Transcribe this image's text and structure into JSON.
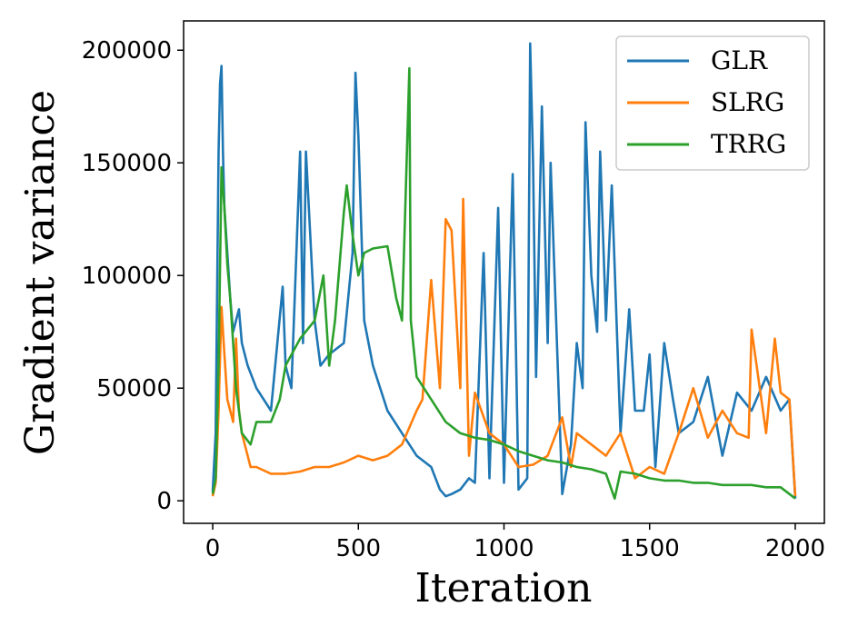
{
  "chart_data": {
    "type": "line",
    "xlabel": "Iteration",
    "ylabel": "Gradient variance",
    "xlim": [
      -100,
      2100
    ],
    "ylim": [
      -10000,
      213000
    ],
    "xticks": [
      0,
      500,
      1000,
      1500,
      2000
    ],
    "yticks": [
      0,
      50000,
      100000,
      150000,
      200000
    ],
    "xtick_labels": [
      "0",
      "500",
      "1000",
      "1500",
      "2000"
    ],
    "ytick_labels": [
      "0",
      "50000",
      "100000",
      "150000",
      "200000"
    ],
    "grid": false,
    "legend_position": "top-right",
    "series": [
      {
        "name": "GLR",
        "color": "#1f77b4",
        "x": [
          0,
          10,
          20,
          25,
          30,
          35,
          40,
          50,
          60,
          70,
          80,
          90,
          100,
          120,
          150,
          200,
          240,
          250,
          270,
          300,
          310,
          320,
          340,
          350,
          370,
          400,
          450,
          480,
          490,
          500,
          520,
          550,
          600,
          650,
          700,
          750,
          780,
          800,
          820,
          850,
          880,
          900,
          930,
          950,
          980,
          1000,
          1030,
          1050,
          1080,
          1090,
          1100,
          1110,
          1130,
          1150,
          1160,
          1200,
          1230,
          1250,
          1270,
          1280,
          1300,
          1320,
          1330,
          1350,
          1370,
          1400,
          1430,
          1450,
          1480,
          1500,
          1520,
          1550,
          1580,
          1600,
          1650,
          1700,
          1750,
          1800,
          1850,
          1900,
          1950,
          1980,
          2000
        ],
        "y": [
          4000,
          30000,
          155000,
          185000,
          193000,
          155000,
          130000,
          110000,
          90000,
          75000,
          80000,
          85000,
          70000,
          60000,
          50000,
          40000,
          95000,
          60000,
          50000,
          155000,
          70000,
          155000,
          105000,
          80000,
          60000,
          65000,
          70000,
          110000,
          190000,
          162000,
          80000,
          60000,
          40000,
          30000,
          20000,
          15000,
          5000,
          2000,
          3000,
          5000,
          10000,
          8000,
          110000,
          10000,
          130000,
          8000,
          145000,
          5000,
          10000,
          203000,
          150000,
          55000,
          175000,
          70000,
          150000,
          3000,
          25000,
          70000,
          50000,
          168000,
          100000,
          75000,
          155000,
          80000,
          140000,
          30000,
          85000,
          40000,
          40000,
          65000,
          15000,
          70000,
          45000,
          30000,
          35000,
          55000,
          20000,
          48000,
          40000,
          55000,
          40000,
          45000,
          1000
        ]
      },
      {
        "name": "SLRG",
        "color": "#ff7f0e",
        "x": [
          0,
          10,
          20,
          30,
          40,
          50,
          60,
          70,
          80,
          90,
          100,
          130,
          150,
          200,
          250,
          300,
          350,
          400,
          450,
          500,
          550,
          600,
          650,
          700,
          720,
          750,
          780,
          800,
          820,
          850,
          860,
          880,
          900,
          950,
          1000,
          1050,
          1100,
          1150,
          1200,
          1230,
          1250,
          1300,
          1350,
          1400,
          1450,
          1500,
          1550,
          1600,
          1650,
          1700,
          1750,
          1800,
          1840,
          1850,
          1900,
          1930,
          1950,
          1980,
          2000
        ],
        "y": [
          2000,
          8000,
          40000,
          86000,
          65000,
          45000,
          40000,
          35000,
          72000,
          40000,
          30000,
          15000,
          15000,
          12000,
          12000,
          13000,
          15000,
          15000,
          17000,
          20000,
          18000,
          20000,
          25000,
          40000,
          45000,
          98000,
          50000,
          125000,
          120000,
          50000,
          134000,
          20000,
          48000,
          30000,
          25000,
          15000,
          16000,
          20000,
          37000,
          15000,
          30000,
          25000,
          20000,
          30000,
          10000,
          15000,
          12000,
          30000,
          50000,
          28000,
          40000,
          30000,
          28000,
          76000,
          30000,
          72000,
          48000,
          45000,
          2000
        ]
      },
      {
        "name": "TRRG",
        "color": "#2ca02c",
        "x": [
          0,
          10,
          20,
          30,
          40,
          50,
          60,
          80,
          100,
          130,
          150,
          200,
          230,
          250,
          300,
          350,
          380,
          400,
          420,
          450,
          460,
          480,
          500,
          520,
          550,
          600,
          630,
          650,
          675,
          680,
          700,
          750,
          800,
          850,
          900,
          950,
          1000,
          1050,
          1100,
          1150,
          1200,
          1250,
          1300,
          1350,
          1380,
          1400,
          1450,
          1500,
          1550,
          1600,
          1650,
          1700,
          1750,
          1800,
          1850,
          1900,
          1950,
          2000
        ],
        "y": [
          3000,
          10000,
          60000,
          148000,
          130000,
          105000,
          90000,
          50000,
          30000,
          25000,
          35000,
          35000,
          45000,
          60000,
          72000,
          80000,
          100000,
          60000,
          80000,
          128000,
          140000,
          118000,
          100000,
          110000,
          112000,
          113000,
          90000,
          80000,
          192000,
          80000,
          55000,
          45000,
          35000,
          30000,
          28000,
          27000,
          25000,
          22000,
          20000,
          18000,
          17000,
          15000,
          14000,
          12000,
          1000,
          13000,
          12000,
          10000,
          9000,
          9000,
          8000,
          8000,
          7000,
          7000,
          7000,
          6000,
          6000,
          1000
        ]
      }
    ]
  }
}
